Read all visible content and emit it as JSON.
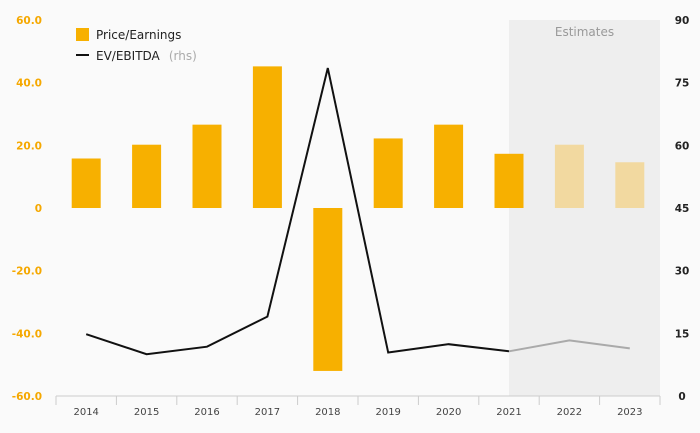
{
  "chart_data": {
    "type": "bar",
    "categories": [
      "2014",
      "2015",
      "2016",
      "2017",
      "2018",
      "2019",
      "2020",
      "2021",
      "2022",
      "2023"
    ],
    "series": [
      {
        "name": "Price/Earnings",
        "kind": "bar",
        "axis": "left",
        "color": "#f7b000",
        "estimate_color": "#f2d9a0",
        "values": [
          15.8,
          20.2,
          26.6,
          45.2,
          -52.0,
          22.2,
          26.6,
          17.3,
          20.2,
          14.6
        ]
      },
      {
        "name": "EV/EBITDA",
        "name_suffix": "(rhs)",
        "kind": "line",
        "axis": "right",
        "color": "#111111",
        "estimate_color": "#aaaaaa",
        "values": [
          14.8,
          10.0,
          11.8,
          19.0,
          78.5,
          10.4,
          12.4,
          10.7,
          13.3,
          11.4
        ]
      }
    ],
    "y_left": {
      "lim": [
        -60,
        60
      ],
      "ticks": [
        -60,
        -40,
        -20,
        0,
        20,
        40,
        60
      ],
      "labels": [
        "-60.0",
        "-40.0",
        "-20.0",
        "0",
        "20.0",
        "40.0",
        "60.0"
      ],
      "color": "#f5a800"
    },
    "y_right": {
      "lim": [
        0,
        90
      ],
      "ticks": [
        0,
        15,
        30,
        45,
        60,
        75,
        90
      ],
      "labels": [
        "0",
        "15",
        "30",
        "45",
        "60",
        "75",
        "90"
      ]
    },
    "estimates": {
      "label": "Estimates",
      "from_category": "2021",
      "to_category": "2023",
      "estimated_categories": [
        "2022",
        "2023"
      ]
    },
    "legend": {
      "placement": "top-left"
    },
    "grid": false
  }
}
